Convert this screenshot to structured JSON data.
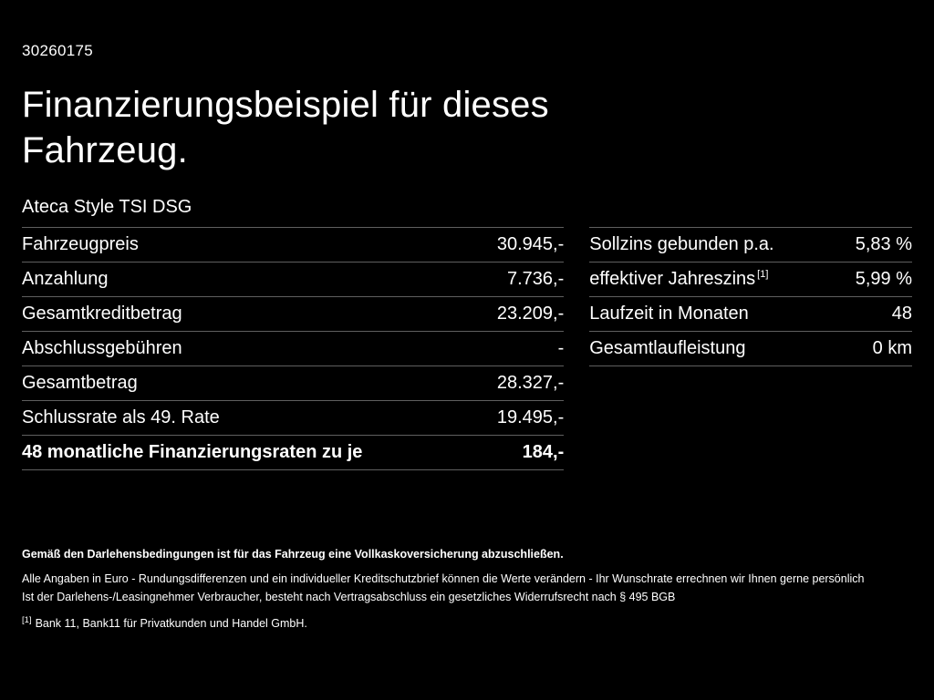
{
  "page": {
    "ref_number": "30260175",
    "title_line1": "Finanzierungsbeispiel für dieses",
    "title_line2": "Fahrzeug.",
    "subtitle": "Ateca Style TSI DSG"
  },
  "left_table": {
    "rows": [
      {
        "label": "Fahrzeugpreis",
        "value": "30.945,-"
      },
      {
        "label": "Anzahlung",
        "value": "7.736,-"
      },
      {
        "label": "Gesamtkreditbetrag",
        "value": "23.209,-"
      },
      {
        "label": "Abschlussgebühren",
        "value": "-"
      },
      {
        "label": "Gesamtbetrag",
        "value": "28.327,-"
      },
      {
        "label": "Schlussrate als 49. Rate",
        "value": "19.495,-"
      },
      {
        "label": "48 monatliche Finanzierungsraten zu je",
        "value": "184,-"
      }
    ]
  },
  "right_table": {
    "rows": [
      {
        "label": "Sollzins gebunden p.a.",
        "sup": "",
        "value": "5,83 %"
      },
      {
        "label": "effektiver Jahreszins",
        "sup": "[1]",
        "value": "5,99 %"
      },
      {
        "label": "Laufzeit in Monaten",
        "sup": "",
        "value": "48"
      },
      {
        "label": "Gesamtlaufleistung",
        "sup": "",
        "value": "0 km"
      }
    ]
  },
  "footer": {
    "line1": "Gemäß den Darlehensbedingungen ist für das Fahrzeug eine Vollkaskoversicherung abzuschließen.",
    "line2": "Alle Angaben in Euro - Rundungsdifferenzen und ein individueller Kreditschutzbrief können die Werte verändern - Ihr Wunschrate errechnen wir Ihnen gerne persönlich",
    "line3": "Ist der Darlehens-/Leasingnehmer Verbraucher, besteht nach Vertragsabschluss ein gesetzliches Widerrufsrecht nach § 495 BGB",
    "footnote_marker": "[1]",
    "footnote_text": "Bank 11, Bank11 für Privatkunden und Handel GmbH."
  },
  "colors": {
    "background": "#000000",
    "text": "#ffffff",
    "divider": "#5f5f5f"
  }
}
